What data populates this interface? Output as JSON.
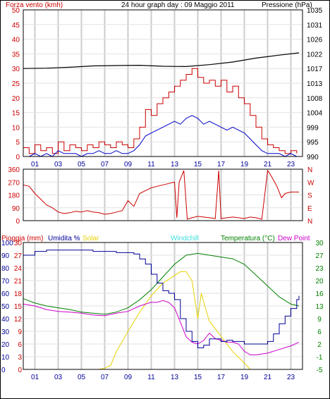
{
  "header": {
    "wind_label": "Forza vento (kmh)",
    "title": "24 hour graph day : 09 Maggio 2011",
    "pressure_label": "Pressione (hPa)"
  },
  "colors": {
    "wind": "#cc0000",
    "gust": "#cc0000",
    "wind_avg": "#0000cc",
    "pressure": "#000000",
    "direction": "#cc0000",
    "rain": "#cc0000",
    "humidity": "#000099",
    "solar": "#e6d200",
    "windchill": "#40e0e0",
    "temperature": "#008000",
    "dewpoint": "#cc00cc",
    "grid": "#cccccc"
  },
  "chart_data": [
    {
      "type": "line",
      "name": "wind-pressure",
      "x_unit": "hour",
      "xlim": [
        0,
        24
      ],
      "x_tick_labels": [
        "01",
        "03",
        "05",
        "07",
        "09",
        "11",
        "13",
        "15",
        "17",
        "19",
        "21",
        "23"
      ],
      "yleft_ticks": [
        "50",
        "45",
        "40",
        "35",
        "30",
        "25",
        "20",
        "15",
        "10",
        "5",
        "0"
      ],
      "ylim_left": [
        0,
        50
      ],
      "yright_ticks": [
        "1035",
        "1031",
        "1026",
        "1022",
        "1017",
        "1013",
        "1008",
        "1004",
        "999",
        "995",
        "990"
      ],
      "ylim_right": [
        990,
        1035
      ],
      "gust_series": {
        "x": [
          0,
          0.5,
          1,
          1.5,
          2,
          2.5,
          3,
          3.5,
          4,
          4.5,
          5,
          5.5,
          6,
          6.5,
          7,
          7.5,
          8,
          8.5,
          9,
          9.5,
          10,
          10.5,
          11,
          11.5,
          12,
          12.5,
          13,
          13.5,
          14,
          14.5,
          15,
          15.5,
          16,
          16.5,
          17,
          17.5,
          18,
          18.5,
          19,
          19.5,
          20,
          20.5,
          21,
          21.5,
          22,
          22.5,
          23,
          23.5
        ],
        "y": [
          3,
          1,
          4,
          2,
          3,
          1,
          5,
          2,
          4,
          3,
          2,
          4,
          3,
          5,
          4,
          3,
          5,
          4,
          3,
          6,
          10,
          16,
          14,
          18,
          20,
          22,
          24,
          26,
          28,
          30,
          27,
          25,
          26,
          24,
          26,
          22,
          24,
          20,
          18,
          14,
          10,
          6,
          4,
          3,
          2,
          1,
          2,
          1
        ]
      },
      "wind_avg_series": {
        "x": [
          0,
          0.5,
          1,
          1.5,
          2,
          2.5,
          3,
          3.5,
          4,
          4.5,
          5,
          5.5,
          6,
          6.5,
          7,
          7.5,
          8,
          8.5,
          9,
          9.5,
          10,
          10.5,
          11,
          11.5,
          12,
          12.5,
          13,
          13.5,
          14,
          14.5,
          15,
          15.5,
          16,
          16.5,
          17,
          17.5,
          18,
          18.5,
          19,
          19.5,
          20,
          20.5,
          21,
          21.5,
          22,
          22.5,
          23,
          23.5
        ],
        "y": [
          0,
          0,
          1,
          0,
          1,
          0,
          2,
          1,
          1,
          1,
          0,
          1,
          1,
          2,
          1,
          1,
          2,
          1,
          1,
          2,
          4,
          7,
          8,
          9,
          10,
          11,
          12,
          11,
          13,
          14,
          13,
          11,
          12,
          11,
          10,
          9,
          10,
          9,
          8,
          6,
          4,
          2,
          1,
          1,
          1,
          0,
          1,
          0
        ]
      },
      "pressure_series": {
        "x": [
          0,
          2,
          4,
          6,
          8,
          10,
          12,
          14,
          16,
          18,
          20,
          22,
          23.7
        ],
        "y": [
          1017,
          1017.1,
          1017.4,
          1017.8,
          1017.9,
          1018,
          1017.7,
          1017.6,
          1018.2,
          1019,
          1020.2,
          1021.1,
          1021.8
        ]
      }
    },
    {
      "type": "line",
      "name": "wind-direction",
      "x_unit": "hour",
      "xlim": [
        0,
        24
      ],
      "yleft_ticks": [
        "360",
        "270",
        "180",
        "90",
        "0"
      ],
      "ylim_left": [
        0,
        360
      ],
      "yright_ticks": [
        "N",
        "W",
        "S",
        "E",
        "N"
      ],
      "series": {
        "x": [
          0,
          0.5,
          1,
          1.5,
          2,
          2.5,
          3,
          3.5,
          4,
          4.5,
          5,
          5.5,
          6,
          6.5,
          7,
          7.5,
          8,
          8.5,
          9,
          9.5,
          10,
          10.5,
          11,
          11.5,
          12,
          12.5,
          13,
          13.2,
          13.4,
          13.8,
          14.1,
          14.5,
          15,
          15.5,
          16,
          16.5,
          16.8,
          17,
          17.5,
          18,
          18.5,
          19,
          19.5,
          20,
          20.5,
          21,
          21.1,
          21.4,
          21.8,
          22.2,
          22.5,
          23,
          23.7
        ],
        "y": [
          250,
          240,
          190,
          150,
          110,
          90,
          60,
          50,
          55,
          65,
          60,
          70,
          60,
          55,
          45,
          50,
          60,
          70,
          140,
          100,
          190,
          210,
          230,
          240,
          250,
          260,
          270,
          20,
          270,
          350,
          10,
          20,
          30,
          25,
          20,
          15,
          350,
          15,
          20,
          25,
          20,
          15,
          25,
          20,
          10,
          350,
          340,
          300,
          240,
          160,
          190,
          200,
          200
        ]
      }
    },
    {
      "type": "line",
      "name": "rain-humidity-solar-temperature",
      "x_unit": "hour",
      "xlim": [
        0,
        24
      ],
      "labels": {
        "rain": "Pioggia (mm)",
        "humidity": "Umidita %",
        "solar": "Solar",
        "windchill": "Windchill",
        "temperature": "Temperatura (°C)",
        "dewpoint": "Dew Point"
      },
      "humidity_ticks": [
        "100",
        "90",
        "80",
        "70",
        "60",
        "50",
        "40",
        "30",
        "20",
        "10",
        "0"
      ],
      "ylim_humidity": [
        0,
        100
      ],
      "rain_ticks": [
        "30",
        "27",
        "24",
        "21",
        "18",
        "15",
        "12",
        "9",
        "6",
        "3",
        "0"
      ],
      "ylim_rain": [
        0,
        30
      ],
      "temp_ticks": [
        "30",
        "27",
        "23",
        "20",
        "16",
        "13",
        "9",
        "6",
        "2",
        "-1",
        "-5"
      ],
      "ylim_temp": [
        -5,
        30
      ],
      "rain_series": {
        "x": [
          0,
          23.7
        ],
        "y": [
          0,
          0
        ]
      },
      "humidity_series": {
        "x": [
          0,
          1,
          2,
          3,
          4,
          5,
          6,
          7,
          8,
          9,
          9.5,
          10,
          10.5,
          11,
          11.5,
          12,
          12.5,
          13,
          13.5,
          14,
          14.5,
          15,
          15.5,
          16,
          16.5,
          17,
          17.5,
          18,
          19,
          20,
          21,
          21.5,
          22,
          22.5,
          23,
          23.5,
          23.7
        ],
        "y": [
          90,
          93,
          94,
          94,
          94,
          94,
          93,
          93,
          92,
          92,
          91,
          87,
          83,
          75,
          68,
          62,
          60,
          55,
          40,
          30,
          22,
          17,
          19,
          24,
          24,
          22,
          23,
          22,
          20,
          20,
          22,
          28,
          36,
          42,
          48,
          55,
          58
        ]
      },
      "solar_series": {
        "x": [
          0,
          6,
          6.5,
          7,
          7.5,
          8,
          9,
          10,
          11,
          12,
          13,
          13.5,
          14,
          14.5,
          15,
          15.3,
          15.6,
          16,
          17,
          18,
          19,
          19.5,
          23.7
        ],
        "y": [
          0,
          0,
          0,
          10,
          30,
          140,
          300,
          450,
          580,
          680,
          740,
          770,
          770,
          700,
          400,
          600,
          500,
          380,
          260,
          140,
          50,
          0,
          0
        ]
      },
      "temperature_series": {
        "x": [
          0,
          1,
          2,
          3,
          4,
          5,
          6,
          7,
          8,
          9,
          10,
          11,
          12,
          13,
          14,
          15,
          16,
          17,
          18,
          19,
          20,
          21,
          22,
          23,
          23.7
        ],
        "y": [
          14.5,
          13.3,
          12.5,
          12,
          11.5,
          10.8,
          10.5,
          10.2,
          10.8,
          12,
          14.2,
          17,
          20.5,
          24,
          26.5,
          27,
          26.5,
          26,
          25.5,
          24,
          21,
          18,
          15,
          13,
          12.5
        ]
      },
      "dewpoint_series": {
        "x": [
          0,
          1,
          2,
          3,
          4,
          5,
          6,
          7,
          8,
          9,
          10,
          11,
          11.5,
          12,
          12.5,
          13,
          13.5,
          14,
          14.5,
          15,
          15.5,
          16,
          16.5,
          17,
          17.5,
          18,
          18.5,
          19,
          19.5,
          20,
          21,
          22,
          23,
          23.7
        ],
        "y": [
          13,
          12.5,
          11.5,
          11,
          10.8,
          10.5,
          10,
          9.8,
          10.5,
          11,
          12.5,
          13.5,
          13.5,
          14,
          13.5,
          12,
          8,
          4,
          2.5,
          2,
          3,
          5,
          3.5,
          3,
          2.5,
          2.5,
          2,
          0,
          -1,
          -1,
          -0.5,
          0.5,
          1.5,
          2.5
        ]
      }
    }
  ]
}
